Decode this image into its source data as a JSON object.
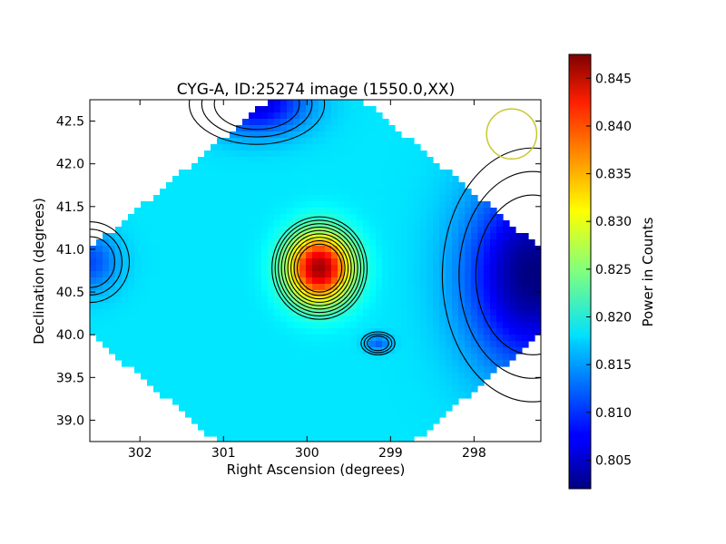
{
  "chart_data": {
    "type": "heatmap",
    "title": "CYG-A, ID:25274 image (1550.0,XX)",
    "xlabel": "Right Ascension (degrees)",
    "ylabel": "Declination (degrees)",
    "xlim": [
      302.6,
      297.2
    ],
    "ylim": [
      38.75,
      42.75
    ],
    "x_axis_inverted": true,
    "x_ticks": [
      "302",
      "301",
      "300",
      "299",
      "298"
    ],
    "x_tick_values": [
      302,
      301,
      300,
      299,
      298
    ],
    "y_ticks": [
      "39.0",
      "39.5",
      "40.0",
      "40.5",
      "41.0",
      "41.5",
      "42.0",
      "42.5"
    ],
    "y_tick_values": [
      39.0,
      39.5,
      40.0,
      40.5,
      41.0,
      41.5,
      42.0,
      42.5
    ],
    "colorbar": {
      "label": "Power in Counts",
      "colormap": "jet",
      "range": [
        0.802,
        0.8475
      ],
      "ticks": [
        "0.805",
        "0.810",
        "0.815",
        "0.820",
        "0.825",
        "0.830",
        "0.835",
        "0.840",
        "0.845"
      ],
      "tick_values": [
        0.805,
        0.81,
        0.815,
        0.82,
        0.825,
        0.83,
        0.835,
        0.84,
        0.845
      ]
    },
    "background_value": 0.818,
    "features": [
      {
        "name": "peak",
        "ra": 299.85,
        "dec": 40.78,
        "value": 0.846,
        "width_ra": 0.38,
        "width_dec": 0.4
      },
      {
        "name": "north-low",
        "ra": 300.6,
        "dec": 42.7,
        "value": 0.806,
        "width_ra": 0.6,
        "width_dec": 0.35
      },
      {
        "name": "east-low",
        "ra": 297.3,
        "dec": 40.7,
        "value": 0.802,
        "width_ra": 0.8,
        "width_dec": 1.1
      },
      {
        "name": "west-edge-low",
        "ra": 302.6,
        "dec": 40.85,
        "value": 0.811,
        "width_ra": 0.35,
        "width_dec": 0.35
      },
      {
        "name": "south-east-knot",
        "ra": 299.15,
        "dec": 39.9,
        "value": 0.812,
        "width_ra": 0.15,
        "width_dec": 0.1
      }
    ],
    "beam_marker": {
      "ra": 297.55,
      "dec": 42.35,
      "radius_deg": 0.3,
      "color": "#c8c832"
    },
    "contours": true,
    "grid": false
  }
}
